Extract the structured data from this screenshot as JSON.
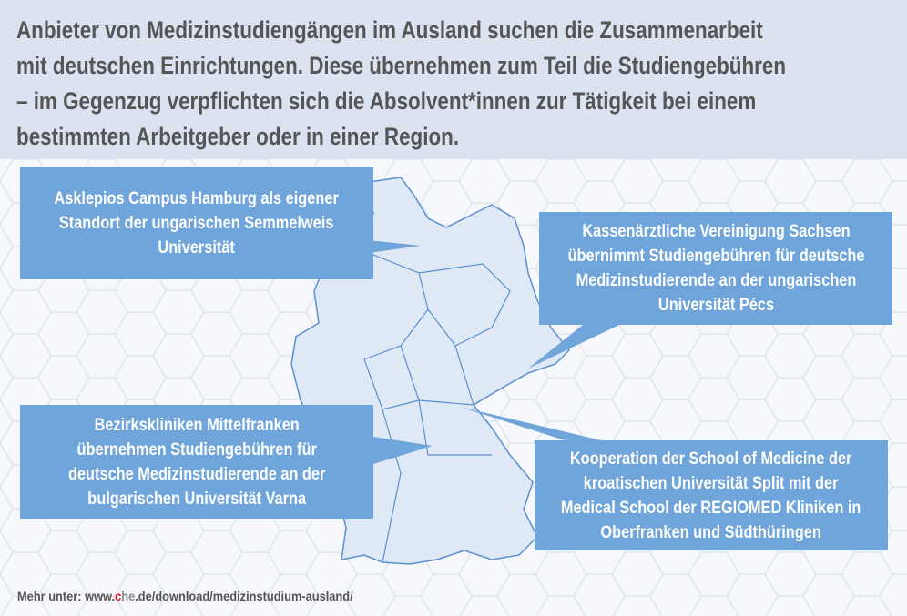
{
  "header": {
    "text": "Anbieter von Medizinstudiengängen im Ausland suchen die Zusammenarbeit\nmit deutschen Einrichtungen. Diese übernehmen zum Teil die Studiengebühren\n– im Gegenzug verpflichten sich die Absolvent*innen zur Tätigkeit bei einem\nbestimmten Arbeitgeber oder in einer Region."
  },
  "callouts": [
    {
      "text": "Asklepios Campus Hamburg als eigener\nStandort der ungarischen Semmelweis\nUniversität"
    },
    {
      "text": "Kassenärztliche Vereinigung Sachsen\nübernimmt Studiengebühren für deutsche\nMedizinstudierende an der ungarischen\nUniversität Pécs"
    },
    {
      "text": "Bezirkskliniken Mittelfranken\nübernehmen Studiengebühren für\ndeutsche Medizinstudierende an der\nbulgarischen Universität Varna"
    },
    {
      "text": "Kooperation der School of Medicine der\nkroatischen Universität Split mit der\nMedical School der REGIOMED Kliniken in\nOberfranken und Südthüringen"
    }
  ],
  "footer": {
    "prefix": "Mehr unter: www.",
    "brand_c": "c",
    "brand_he": "he",
    "suffix": ".de/download/medizinstudium-ausland/"
  },
  "colors": {
    "callout": "#6fa5da",
    "header_bg": "#dbe3f1",
    "map_fill": "#dfe9f6",
    "map_stroke": "#5b8fd0",
    "brand_red": "#e30613"
  }
}
